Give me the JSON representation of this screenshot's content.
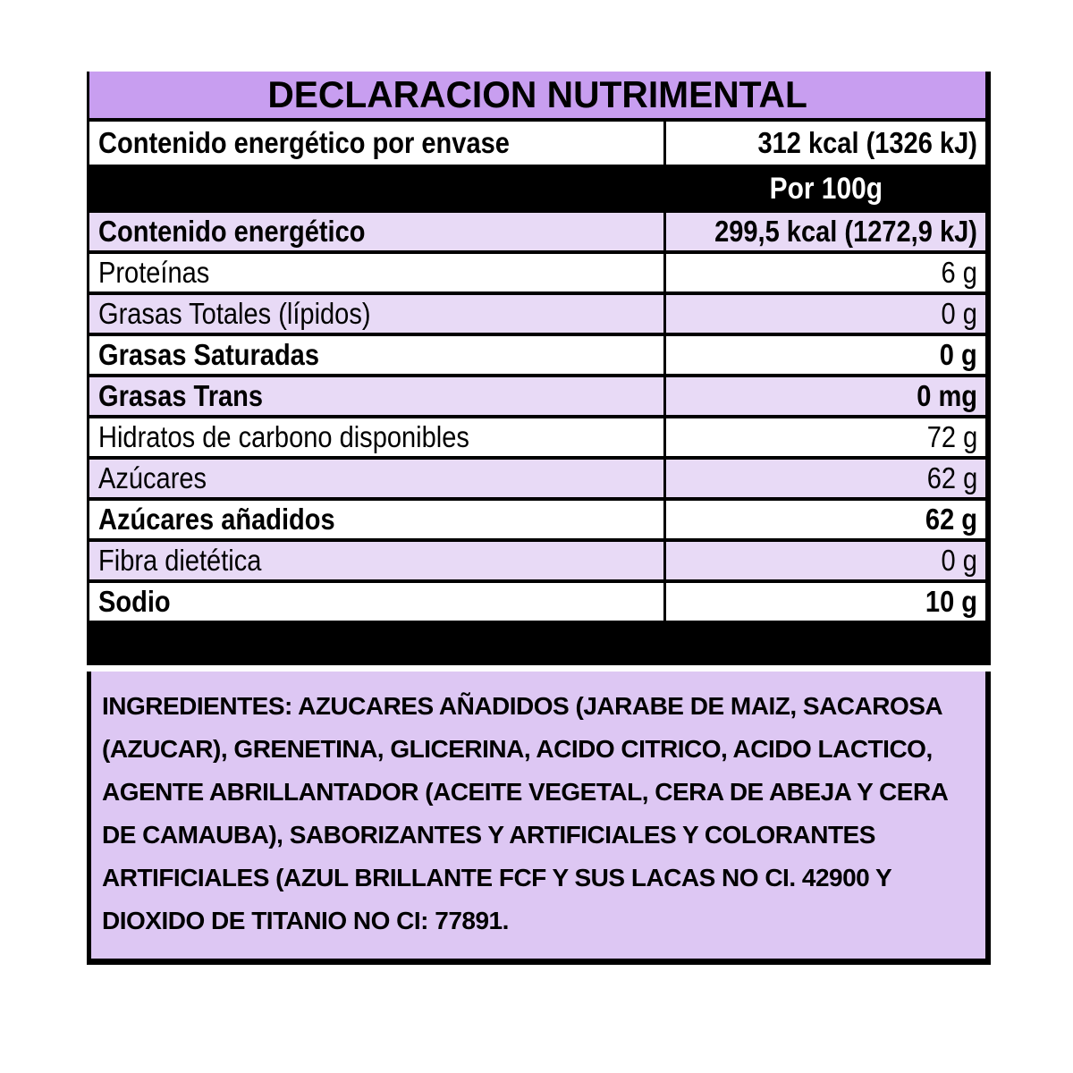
{
  "colors": {
    "title_bg": "#c89ef0",
    "row_alt_bg": "#e8daf6",
    "row_bg": "#ffffff",
    "bar_bg": "#000000",
    "bar_text": "#ffffff",
    "ingredients_bg": "#ddc7f3",
    "border": "#000000",
    "text": "#000000"
  },
  "title": "DECLARACION NUTRIMENTAL",
  "table": {
    "rows": [
      {
        "label": "Contenido energético por envase",
        "value": "312 kcal (1326 kJ)"
      },
      {
        "label": "",
        "value": "Por 100g"
      },
      {
        "label": "Contenido energético",
        "value": "299,5 kcal (1272,9 kJ)"
      },
      {
        "label": "Proteínas",
        "value": "6 g"
      },
      {
        "label": "Grasas Totales (lípidos)",
        "value": "0 g"
      },
      {
        "label": "Grasas Saturadas",
        "value": "0 g"
      },
      {
        "label": "Grasas Trans",
        "value": "0 mg"
      },
      {
        "label": "Hidratos de carbono disponibles",
        "value": "72 g"
      },
      {
        "label": "Azúcares",
        "value": "62 g"
      },
      {
        "label": "Azúcares añadidos",
        "value": "62 g"
      },
      {
        "label": "Fibra dietética",
        "value": "0 g"
      },
      {
        "label": "Sodio",
        "value": "10 g"
      }
    ]
  },
  "ingredients": {
    "text": "INGREDIENTES: AZUCARES AÑADIDOS (JARABE DE MAIZ, SACAROSA (AZUCAR), GRENETINA, GLICERINA, ACIDO CITRICO, ACIDO LACTICO, AGENTE ABRILLANTADOR (ACEITE VEGETAL, CERA DE ABEJA Y CERA DE CAMAUBA), SABORIZANTES Y ARTIFICIALES Y COLORANTES ARTIFICIALES (AZUL BRILLANTE FCF Y SUS LACAS NO CI. 42900 Y DIOXIDO DE TITANIO NO CI: 77891."
  }
}
